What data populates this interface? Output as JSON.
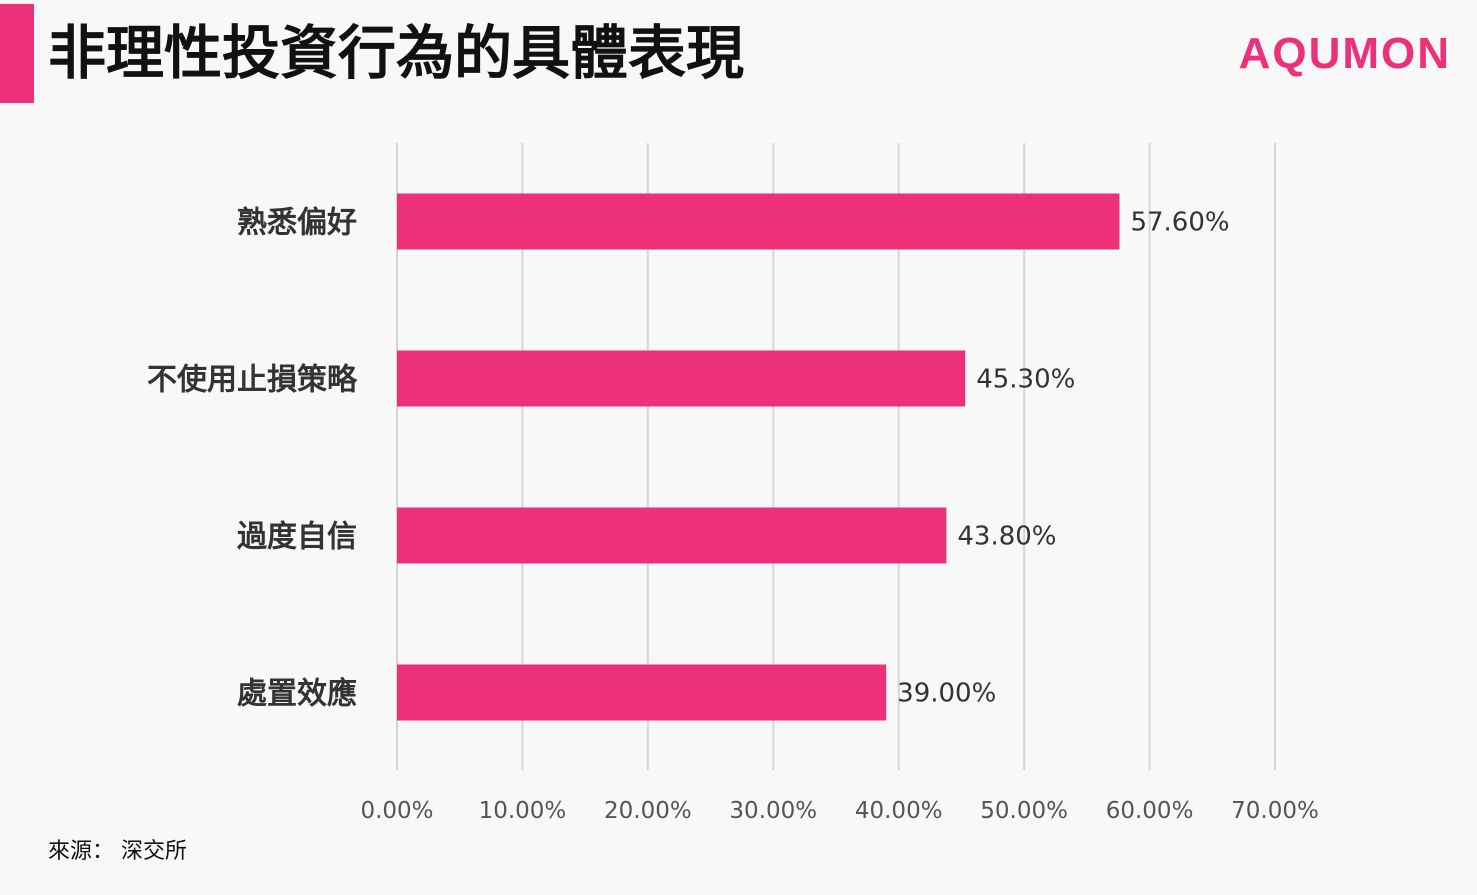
{
  "header": {
    "title": "非理性投資行為的具體表現",
    "logo_text": "AQUMON"
  },
  "colors": {
    "accent": "#ec307a",
    "bar": "#ec307a",
    "gridline": "#d6d6d6",
    "label_text": "#333333",
    "tick_text": "#555555"
  },
  "chart_data": {
    "type": "bar",
    "orientation": "horizontal",
    "categories": [
      "熟悉偏好",
      "不使用止損策略",
      "過度自信",
      "處置效應"
    ],
    "values": [
      57.6,
      45.3,
      43.8,
      39.0
    ],
    "data_labels": [
      "57.60%",
      "45.30%",
      "43.80%",
      "39.00%"
    ],
    "x_ticks": [
      0,
      10,
      20,
      30,
      40,
      50,
      60,
      70
    ],
    "x_tick_labels": [
      "0.00%",
      "10.00%",
      "20.00%",
      "30.00%",
      "40.00%",
      "50.00%",
      "60.00%",
      "70.00%"
    ],
    "xlim": [
      0,
      70
    ],
    "grid": true,
    "legend": "none"
  },
  "footer": {
    "source": "來源： 深交所"
  }
}
